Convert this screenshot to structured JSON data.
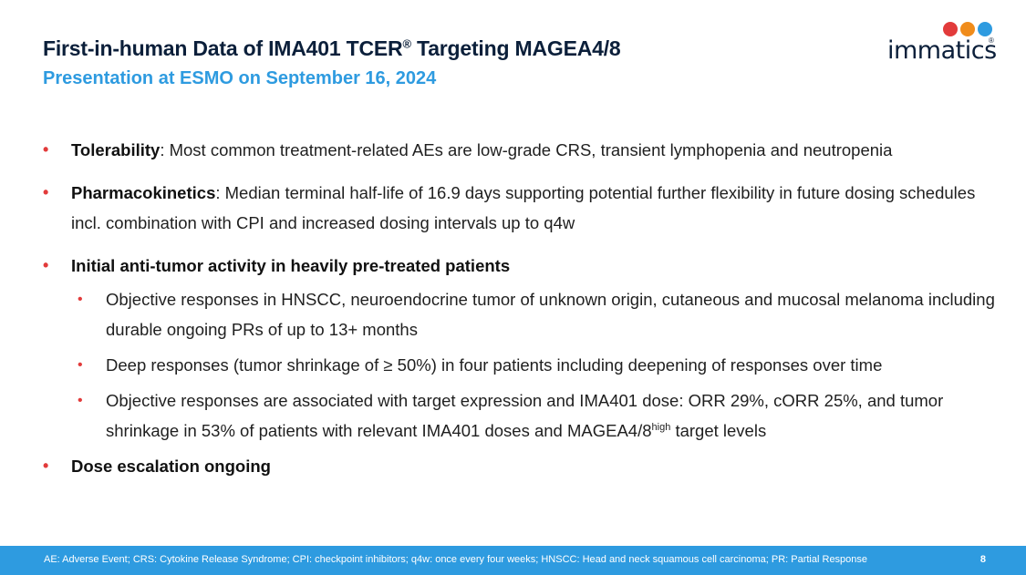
{
  "header": {
    "title_main": "First-in-human Data of IMA401 TCER",
    "title_reg": "®",
    "title_rest": " Targeting MAGEA4/8",
    "subtitle": "Presentation at ESMO on September 16, 2024"
  },
  "logo": {
    "text": "immatics",
    "reg": "®"
  },
  "bullets": {
    "b1_bold": "Tolerability",
    "b1_text": ": Most common treatment-related AEs are low-grade CRS, transient lymphopenia and neutropenia",
    "b2_bold": "Pharmacokinetics",
    "b2_text": ": Median terminal half-life of 16.9 days supporting potential further flexibility in future dosing schedules incl. combination with CPI and increased dosing intervals up to q4w",
    "b3_bold": "Initial anti-tumor activity in heavily pre-treated patients",
    "s1": "Objective responses in HNSCC, neuroendocrine tumor of unknown origin, cutaneous and mucosal melanoma including durable ongoing PRs of up to 13+ months",
    "s2": "Deep responses (tumor shrinkage of ≥ 50%) in four patients including deepening of responses over time",
    "s3_a": "Objective responses are associated with target expression and IMA401 dose: ORR 29%, cORR 25%, and tumor shrinkage in 53% of patients with relevant IMA401 doses and MAGEA4/8",
    "s3_sup": "high",
    "s3_b": " target levels",
    "b4_bold": "Dose escalation ongoing"
  },
  "footer": {
    "text": "AE: Adverse Event; CRS: Cytokine Release Syndrome; CPI: checkpoint inhibitors; q4w: once every four weeks; HNSCC: Head and neck squamous cell carcinoma; PR: Partial Response",
    "page": "8"
  },
  "colors": {
    "accent_blue": "#2e9be0",
    "bullet_red": "#e23b3b",
    "title_navy": "#0b1f3a"
  }
}
